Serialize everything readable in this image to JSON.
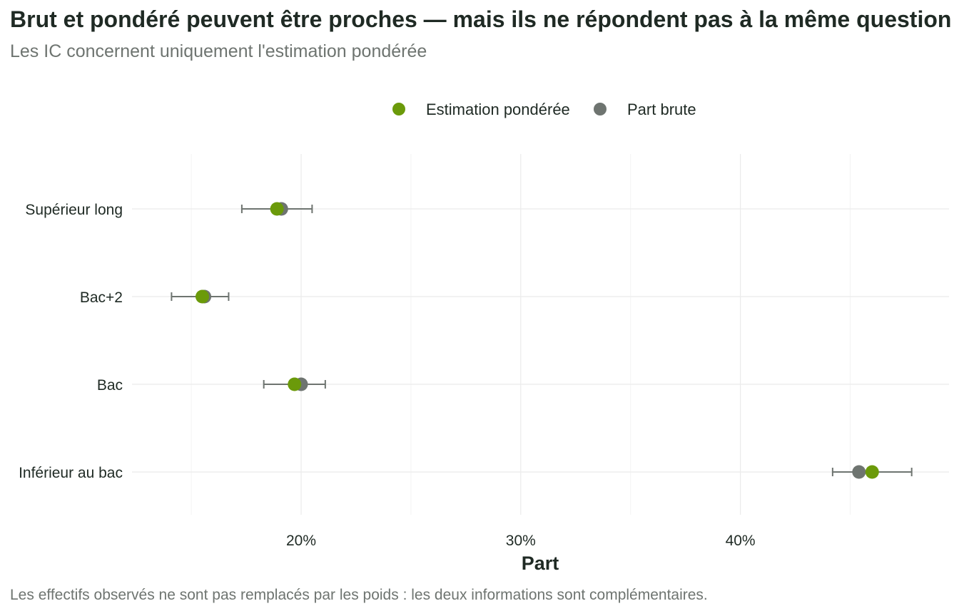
{
  "header": {
    "title": "Brut et pondéré peuvent être proches — mais ils ne répondent pas à la même question",
    "subtitle": "Les IC concernent uniquement l'estimation pondérée"
  },
  "footer": {
    "caption": "Les effectifs observés ne sont pas remplacés par les poids : les deux informations sont complémentaires."
  },
  "chart_data": {
    "type": "scatter",
    "orientation": "horizontal-dot-plot",
    "title": "Brut et pondéré peuvent être proches — mais ils ne répondent pas à la même question",
    "subtitle": "Les IC concernent uniquement l'estimation pondérée",
    "xlabel": "Part",
    "ylabel": "",
    "xlim": [
      12.3,
      49.5
    ],
    "x_ticks": [
      20,
      30,
      40
    ],
    "x_tick_labels": [
      "20%",
      "30%",
      "40%"
    ],
    "categories": [
      "Supérieur long",
      "Bac+2",
      "Bac",
      "Inférieur au bac"
    ],
    "series": [
      {
        "name": "Estimation pondérée",
        "color": "#6b9a0a",
        "values": [
          18.9,
          15.5,
          19.7,
          46.0
        ],
        "ci_low": [
          17.3,
          14.1,
          18.3,
          44.2
        ],
        "ci_high": [
          20.5,
          16.7,
          21.1,
          47.8
        ]
      },
      {
        "name": "Part brute",
        "color": "#6e7470",
        "values": [
          19.1,
          15.6,
          20.0,
          45.4
        ]
      }
    ],
    "legend_position": "top",
    "grid": true,
    "errorbar_color": "#6e7470"
  }
}
